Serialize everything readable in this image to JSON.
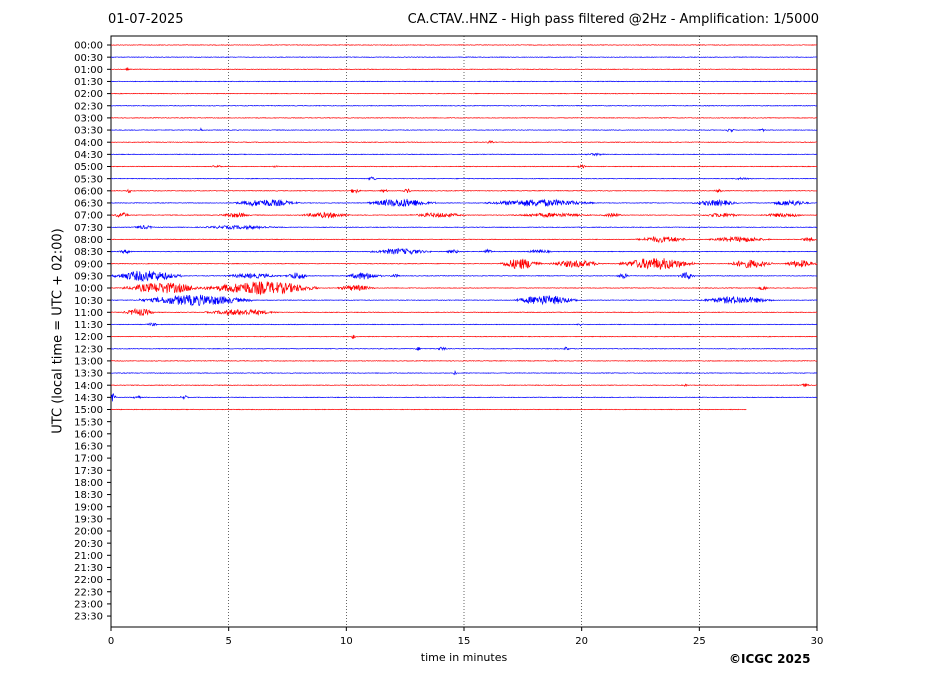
{
  "header": {
    "date": "01-07-2025",
    "title": "CA.CTAV..HNZ - High pass filtered @2Hz - Amplification: 1/5000"
  },
  "footer": {
    "copyright": "©ICGC 2025"
  },
  "colors": {
    "trace_a": "#ff0000",
    "trace_b": "#0000ff",
    "grid": "#000000"
  },
  "chart_data": {
    "type": "line",
    "xlabel": "time in minutes",
    "ylabel": "UTC (local time = UTC + 02:00)",
    "xlim": [
      0,
      30
    ],
    "x_ticks": [
      0,
      5,
      10,
      15,
      20,
      25,
      30
    ],
    "vertical_gridlines_at": [
      5,
      10,
      15,
      20,
      25
    ],
    "grid": "dotted vertical",
    "row_interval_minutes": 30,
    "row_labels": [
      "00:00",
      "00:30",
      "01:00",
      "01:30",
      "02:00",
      "02:30",
      "03:00",
      "03:30",
      "04:00",
      "04:30",
      "05:00",
      "05:30",
      "06:00",
      "06:30",
      "07:00",
      "07:30",
      "08:00",
      "08:30",
      "09:00",
      "09:30",
      "10:00",
      "10:30",
      "11:00",
      "11:30",
      "12:00",
      "12:30",
      "13:00",
      "13:30",
      "14:00",
      "14:30",
      "15:00",
      "15:30",
      "16:00",
      "16:30",
      "17:00",
      "17:30",
      "18:00",
      "18:30",
      "19:00",
      "19:30",
      "20:00",
      "20:30",
      "21:00",
      "21:30",
      "22:00",
      "22:30",
      "23:00",
      "23:30"
    ],
    "recorded_rows": 31,
    "last_row_end_minute": 27,
    "row_colors": [
      "red",
      "blue"
    ],
    "noise_level": 0.1,
    "bursts": [
      {
        "row": "01:00",
        "color": "red",
        "start": 0.6,
        "end": 0.8,
        "amp": 0.2
      },
      {
        "row": "03:30",
        "color": "blue",
        "start": 3.7,
        "end": 3.9,
        "amp": 0.3
      },
      {
        "row": "03:30",
        "color": "blue",
        "start": 26.1,
        "end": 26.5,
        "amp": 0.35
      },
      {
        "row": "03:30",
        "color": "blue",
        "start": 27.5,
        "end": 27.8,
        "amp": 0.25
      },
      {
        "row": "04:00",
        "color": "red",
        "start": 15.9,
        "end": 16.3,
        "amp": 0.25
      },
      {
        "row": "04:30",
        "color": "blue",
        "start": 20.0,
        "end": 21.2,
        "amp": 0.2
      },
      {
        "row": "05:00",
        "color": "red",
        "start": 4.2,
        "end": 4.8,
        "amp": 0.2
      },
      {
        "row": "05:00",
        "color": "red",
        "start": 6.8,
        "end": 7.2,
        "amp": 0.15
      },
      {
        "row": "05:00",
        "color": "red",
        "start": 19.8,
        "end": 20.2,
        "amp": 0.3
      },
      {
        "row": "05:30",
        "color": "blue",
        "start": 10.9,
        "end": 11.3,
        "amp": 0.35
      },
      {
        "row": "05:30",
        "color": "blue",
        "start": 26.3,
        "end": 27.4,
        "amp": 0.2
      },
      {
        "row": "06:00",
        "color": "red",
        "start": 0.6,
        "end": 0.9,
        "amp": 0.3
      },
      {
        "row": "06:00",
        "color": "red",
        "start": 10.1,
        "end": 10.6,
        "amp": 0.4
      },
      {
        "row": "06:00",
        "color": "red",
        "start": 11.4,
        "end": 11.8,
        "amp": 0.3
      },
      {
        "row": "06:00",
        "color": "red",
        "start": 12.4,
        "end": 12.8,
        "amp": 0.35
      },
      {
        "row": "06:00",
        "color": "red",
        "start": 25.6,
        "end": 26.0,
        "amp": 0.3
      },
      {
        "row": "06:30",
        "color": "blue",
        "start": 5.2,
        "end": 8.0,
        "amp": 0.6
      },
      {
        "row": "06:30",
        "color": "blue",
        "start": 10.9,
        "end": 13.8,
        "amp": 0.7
      },
      {
        "row": "06:30",
        "color": "blue",
        "start": 15.9,
        "end": 20.5,
        "amp": 0.6
      },
      {
        "row": "06:30",
        "color": "blue",
        "start": 24.7,
        "end": 26.7,
        "amp": 0.5
      },
      {
        "row": "06:30",
        "color": "blue",
        "start": 28.0,
        "end": 29.7,
        "amp": 0.5
      },
      {
        "row": "07:00",
        "color": "red",
        "start": 0.1,
        "end": 0.8,
        "amp": 0.45
      },
      {
        "row": "07:00",
        "color": "red",
        "start": 4.6,
        "end": 6.0,
        "amp": 0.4
      },
      {
        "row": "07:00",
        "color": "red",
        "start": 8.0,
        "end": 10.2,
        "amp": 0.45
      },
      {
        "row": "07:00",
        "color": "red",
        "start": 12.7,
        "end": 15.1,
        "amp": 0.4
      },
      {
        "row": "07:00",
        "color": "red",
        "start": 17.0,
        "end": 20.4,
        "amp": 0.35
      },
      {
        "row": "07:00",
        "color": "red",
        "start": 20.8,
        "end": 21.8,
        "amp": 0.3
      },
      {
        "row": "07:00",
        "color": "red",
        "start": 25.1,
        "end": 26.8,
        "amp": 0.35
      },
      {
        "row": "07:00",
        "color": "red",
        "start": 27.6,
        "end": 29.6,
        "amp": 0.35
      },
      {
        "row": "07:30",
        "color": "blue",
        "start": 0.9,
        "end": 1.9,
        "amp": 0.3
      },
      {
        "row": "07:30",
        "color": "blue",
        "start": 3.6,
        "end": 7.3,
        "amp": 0.3
      },
      {
        "row": "08:00",
        "color": "red",
        "start": 22.3,
        "end": 24.6,
        "amp": 0.5
      },
      {
        "row": "08:00",
        "color": "red",
        "start": 25.4,
        "end": 28.0,
        "amp": 0.45
      },
      {
        "row": "08:00",
        "color": "red",
        "start": 29.3,
        "end": 30.0,
        "amp": 0.4
      },
      {
        "row": "08:30",
        "color": "blue",
        "start": 0.3,
        "end": 1.0,
        "amp": 0.3
      },
      {
        "row": "08:30",
        "color": "blue",
        "start": 11.0,
        "end": 13.6,
        "amp": 0.5
      },
      {
        "row": "08:30",
        "color": "blue",
        "start": 14.2,
        "end": 14.9,
        "amp": 0.3
      },
      {
        "row": "08:30",
        "color": "blue",
        "start": 15.7,
        "end": 16.3,
        "amp": 0.35
      },
      {
        "row": "08:30",
        "color": "blue",
        "start": 17.6,
        "end": 18.8,
        "amp": 0.3
      },
      {
        "row": "09:00",
        "color": "red",
        "start": 16.5,
        "end": 18.3,
        "amp": 0.9
      },
      {
        "row": "09:00",
        "color": "red",
        "start": 18.6,
        "end": 20.9,
        "amp": 0.6
      },
      {
        "row": "09:00",
        "color": "red",
        "start": 21.6,
        "end": 24.8,
        "amp": 1.0
      },
      {
        "row": "09:00",
        "color": "red",
        "start": 26.2,
        "end": 28.1,
        "amp": 0.7
      },
      {
        "row": "09:00",
        "color": "red",
        "start": 28.6,
        "end": 30.0,
        "amp": 0.6
      },
      {
        "row": "09:30",
        "color": "blue",
        "start": 0.0,
        "end": 3.0,
        "amp": 0.9
      },
      {
        "row": "09:30",
        "color": "blue",
        "start": 4.8,
        "end": 7.2,
        "amp": 0.4
      },
      {
        "row": "09:30",
        "color": "blue",
        "start": 7.4,
        "end": 8.4,
        "amp": 0.6
      },
      {
        "row": "09:30",
        "color": "blue",
        "start": 10.0,
        "end": 11.5,
        "amp": 0.6
      },
      {
        "row": "09:30",
        "color": "blue",
        "start": 11.8,
        "end": 12.3,
        "amp": 0.3
      },
      {
        "row": "09:30",
        "color": "blue",
        "start": 21.5,
        "end": 22.0,
        "amp": 0.5
      },
      {
        "row": "09:30",
        "color": "blue",
        "start": 24.1,
        "end": 24.8,
        "amp": 0.6
      },
      {
        "row": "10:00",
        "color": "red",
        "start": 0.5,
        "end": 4.0,
        "amp": 0.9
      },
      {
        "row": "10:00",
        "color": "red",
        "start": 4.0,
        "end": 8.8,
        "amp": 1.1
      },
      {
        "row": "10:00",
        "color": "red",
        "start": 9.6,
        "end": 11.2,
        "amp": 0.5
      },
      {
        "row": "10:00",
        "color": "red",
        "start": 27.5,
        "end": 27.9,
        "amp": 0.4
      },
      {
        "row": "10:30",
        "color": "blue",
        "start": 1.2,
        "end": 6.0,
        "amp": 0.9
      },
      {
        "row": "10:30",
        "color": "blue",
        "start": 17.1,
        "end": 19.8,
        "amp": 0.8
      },
      {
        "row": "10:30",
        "color": "blue",
        "start": 25.0,
        "end": 28.2,
        "amp": 0.6
      },
      {
        "row": "11:00",
        "color": "red",
        "start": 0.5,
        "end": 1.9,
        "amp": 0.6
      },
      {
        "row": "11:00",
        "color": "red",
        "start": 4.0,
        "end": 7.1,
        "amp": 0.5
      },
      {
        "row": "11:30",
        "color": "blue",
        "start": 1.5,
        "end": 2.0,
        "amp": 0.3
      },
      {
        "row": "11:30",
        "color": "blue",
        "start": 19.8,
        "end": 20.1,
        "amp": 0.3
      },
      {
        "row": "12:00",
        "color": "red",
        "start": 10.2,
        "end": 10.4,
        "amp": 0.4
      },
      {
        "row": "12:30",
        "color": "blue",
        "start": 12.9,
        "end": 13.2,
        "amp": 0.3
      },
      {
        "row": "12:30",
        "color": "blue",
        "start": 13.8,
        "end": 14.3,
        "amp": 0.3
      },
      {
        "row": "12:30",
        "color": "blue",
        "start": 19.2,
        "end": 19.5,
        "amp": 0.3
      },
      {
        "row": "13:00",
        "color": "red",
        "start": 18.8,
        "end": 19.0,
        "amp": 0.2
      },
      {
        "row": "13:30",
        "color": "blue",
        "start": 14.5,
        "end": 14.7,
        "amp": 0.35
      },
      {
        "row": "14:00",
        "color": "red",
        "start": 24.2,
        "end": 24.5,
        "amp": 0.25
      },
      {
        "row": "14:00",
        "color": "red",
        "start": 29.3,
        "end": 29.7,
        "amp": 0.3
      },
      {
        "row": "14:30",
        "color": "blue",
        "start": 0.0,
        "end": 0.2,
        "amp": 0.9
      },
      {
        "row": "14:30",
        "color": "blue",
        "start": 0.9,
        "end": 1.3,
        "amp": 0.3
      },
      {
        "row": "14:30",
        "color": "blue",
        "start": 2.9,
        "end": 3.3,
        "amp": 0.35
      }
    ]
  }
}
